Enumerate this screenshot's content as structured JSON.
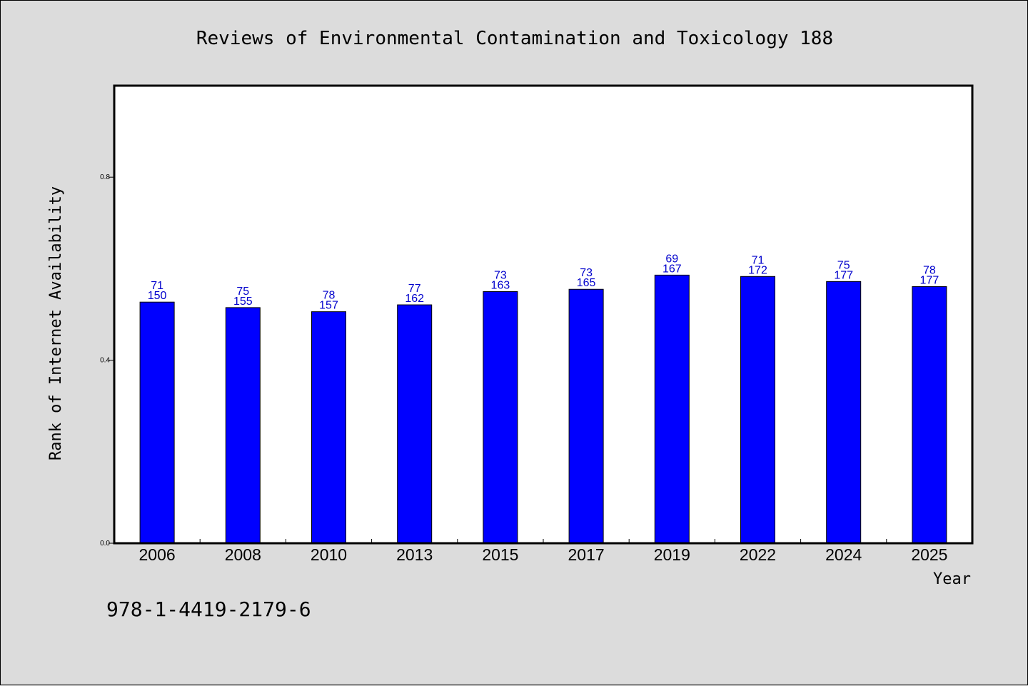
{
  "colors": {
    "background": "#dcdcdc",
    "plot_background": "#ffffff",
    "bar": "#0000ff",
    "data_label": "#0000cc",
    "axis": "#000000"
  },
  "footer": {
    "isbn": "978-1-4419-2179-6"
  },
  "chart_data": {
    "type": "bar",
    "title": "Reviews of Environmental Contamination and Toxicology 188",
    "xlabel": "Year",
    "ylabel": "Rank of Internet Availability",
    "ylim": [
      0,
      1
    ],
    "yticks": [
      {
        "value": 0,
        "label": "0.0"
      },
      {
        "value": 0.4,
        "label": "0.4"
      },
      {
        "value": 0.8,
        "label": "0.8"
      }
    ],
    "grid": false,
    "categories": [
      "2006",
      "2008",
      "2010",
      "2013",
      "2015",
      "2017",
      "2019",
      "2022",
      "2024",
      "2025"
    ],
    "values": [
      0.527,
      0.515,
      0.506,
      0.521,
      0.55,
      0.555,
      0.586,
      0.583,
      0.572,
      0.561
    ],
    "annotations_top": [
      "71",
      "75",
      "78",
      "77",
      "73",
      "73",
      "69",
      "71",
      "75",
      "78"
    ],
    "annotations_bottom": [
      "150",
      "155",
      "157",
      "162",
      "163",
      "165",
      "167",
      "172",
      "177",
      "177"
    ]
  }
}
